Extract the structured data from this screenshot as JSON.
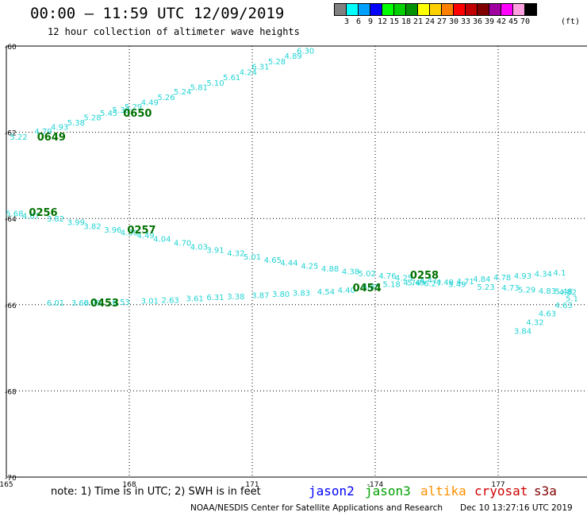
{
  "header": {
    "title": "00:00 – 11:59 UTC 12/09/2019",
    "subtitle": "12 hour collection of altimeter wave heights"
  },
  "legend": {
    "colors": [
      "#808080",
      "#00ffff",
      "#00a0ff",
      "#0000ff",
      "#00ff00",
      "#00d000",
      "#009000",
      "#ffff00",
      "#ffd000",
      "#ff8000",
      "#ff0000",
      "#c00000",
      "#800000",
      "#a000a0",
      "#ff00ff",
      "#ffa0e0",
      "#000000"
    ],
    "labels": [
      "3",
      "6",
      "9",
      "12",
      "15",
      "18",
      "21",
      "24",
      "27",
      "30",
      "33",
      "36",
      "39",
      "42",
      "45",
      "70"
    ],
    "unit": "(ft)"
  },
  "axes": {
    "lon_labels": [
      "165",
      "168",
      "171",
      "-174",
      "177"
    ],
    "lat_labels": [
      "-60",
      "-62",
      "-64",
      "-66",
      "-68",
      "-70"
    ]
  },
  "chart_data": {
    "type": "scatter",
    "xlim": [
      165,
      185
    ],
    "ylim": [
      -70,
      -60
    ],
    "series": [
      {
        "time": "0649",
        "time_pos": [
          166.1,
          -62.1
        ],
        "points": [
          [
            165.3,
            -62.1,
            "5.22"
          ],
          [
            165.9,
            -61.97,
            "4.79"
          ],
          [
            166.3,
            -61.87,
            "4.93"
          ],
          [
            166.7,
            -61.77,
            "5.38"
          ],
          [
            167.1,
            -61.65,
            "5.28"
          ],
          [
            167.5,
            -61.55,
            "5.45"
          ],
          [
            167.8,
            -61.47,
            "5.38"
          ]
        ]
      },
      {
        "time": "0650",
        "time_pos": [
          168.2,
          -61.55
        ],
        "points": [
          [
            168.1,
            -61.4,
            "5.29"
          ],
          [
            168.5,
            -61.3,
            "4.49"
          ],
          [
            168.9,
            -61.18,
            "5.26"
          ],
          [
            169.3,
            -61.05,
            "5.24"
          ],
          [
            169.7,
            -60.95,
            "5.81"
          ],
          [
            170.1,
            -60.85,
            "5.10"
          ],
          [
            170.5,
            -60.72,
            "5.61"
          ],
          [
            170.9,
            -60.6,
            "4.24"
          ],
          [
            171.2,
            -60.47,
            "6.31"
          ],
          [
            171.6,
            -60.35,
            "5.28"
          ],
          [
            172.0,
            -60.22,
            "4.89"
          ],
          [
            172.3,
            -60.1,
            "6.30"
          ]
        ]
      },
      {
        "time": "0256",
        "time_pos": [
          165.9,
          -63.85
        ],
        "points": [
          [
            165.2,
            -63.88,
            "5.68"
          ],
          [
            165.6,
            -63.93,
            "4.67"
          ],
          [
            166.2,
            -64.0,
            "3.82"
          ],
          [
            166.7,
            -64.08,
            "3.99"
          ],
          [
            167.1,
            -64.17,
            "3.82"
          ],
          [
            167.6,
            -64.25,
            "3.96"
          ],
          [
            168.0,
            -64.32,
            "4.30"
          ]
        ]
      },
      {
        "time": "0257",
        "time_pos": [
          168.3,
          -64.25
        ],
        "points": [
          [
            168.4,
            -64.38,
            "4.49"
          ],
          [
            168.8,
            -64.47,
            "4.04"
          ],
          [
            169.3,
            -64.56,
            "4.70"
          ],
          [
            169.7,
            -64.65,
            "4.03"
          ],
          [
            170.1,
            -64.72,
            "3.91"
          ],
          [
            170.6,
            -64.8,
            "4.32"
          ],
          [
            171.0,
            -64.88,
            "5.01"
          ],
          [
            171.5,
            -64.95,
            "4.65"
          ],
          [
            171.9,
            -65.02,
            "4.44"
          ],
          [
            172.4,
            -65.09,
            "4.25"
          ],
          [
            172.9,
            -65.16,
            "4.88"
          ],
          [
            173.4,
            -65.22,
            "4.38"
          ],
          [
            173.8,
            -65.27,
            "5.02"
          ],
          [
            174.3,
            -65.32,
            "4.76"
          ],
          [
            174.7,
            -65.37,
            "4.25"
          ]
        ]
      },
      {
        "time": "0258",
        "time_pos": [
          175.2,
          -65.3
        ],
        "points": [
          [
            175.3,
            -65.42,
            "4.47"
          ],
          [
            175.7,
            -65.47,
            "4.49"
          ],
          [
            176.2,
            -65.45,
            "4.71"
          ],
          [
            176.6,
            -65.4,
            "4.84"
          ],
          [
            177.1,
            -65.36,
            "4.78"
          ],
          [
            177.6,
            -65.32,
            "4.93"
          ],
          [
            178.1,
            -65.28,
            "4.34"
          ],
          [
            178.5,
            -65.25,
            "4.1"
          ],
          [
            175.0,
            -65.48,
            "5.49"
          ],
          [
            175.4,
            -65.5,
            "6.27"
          ],
          [
            176.0,
            -65.52,
            "5.49"
          ],
          [
            176.7,
            -65.58,
            "5.23"
          ],
          [
            177.3,
            -65.6,
            "4.73"
          ],
          [
            177.7,
            -65.64,
            "5.29"
          ],
          [
            178.2,
            -65.67,
            "4.83"
          ],
          [
            178.6,
            -65.68,
            "5.48"
          ]
        ]
      },
      {
        "time": "0453",
        "time_pos": [
          167.4,
          -65.95
        ],
        "points": [
          [
            166.2,
            -65.95,
            "6.01"
          ],
          [
            166.8,
            -65.95,
            "3.60"
          ],
          [
            167.1,
            -65.95,
            "6.29"
          ],
          [
            167.8,
            -65.93,
            "6.53"
          ]
        ]
      },
      {
        "time": "0454",
        "time_pos": [
          173.8,
          -65.6
        ],
        "points": [
          [
            168.5,
            -65.9,
            "3.01"
          ],
          [
            169.0,
            -65.88,
            "2.63"
          ],
          [
            169.6,
            -65.85,
            "3.61"
          ],
          [
            170.1,
            -65.82,
            "6.31"
          ],
          [
            170.6,
            -65.8,
            "3.38"
          ],
          [
            171.2,
            -65.77,
            "3.87"
          ],
          [
            171.7,
            -65.75,
            "3.80"
          ],
          [
            172.2,
            -65.72,
            "3.83"
          ],
          [
            172.8,
            -65.69,
            "4.54"
          ],
          [
            173.3,
            -65.65,
            "4.40"
          ],
          [
            173.9,
            -65.57,
            "4.88"
          ],
          [
            174.4,
            -65.52,
            "5.18"
          ],
          [
            174.9,
            -65.48,
            "4.76"
          ]
        ]
      },
      {
        "time": "",
        "time_pos": null,
        "points": [
          [
            178.7,
            -65.7,
            "4.82"
          ],
          [
            178.8,
            -65.85,
            "5.1"
          ],
          [
            178.6,
            -66.0,
            "4.63"
          ],
          [
            178.2,
            -66.2,
            "4.63"
          ],
          [
            177.9,
            -66.4,
            "4.32"
          ],
          [
            177.6,
            -66.6,
            "3.84"
          ]
        ]
      }
    ]
  },
  "footer": {
    "note": "note: 1) Time is in UTC; 2) SWH is in feet",
    "satellites": [
      {
        "name": "jason2",
        "color": "#0000ff",
        "left": 389
      },
      {
        "name": "jason3",
        "color": "#00a000",
        "left": 460
      },
      {
        "name": "altika",
        "color": "#ff9000",
        "left": 530
      },
      {
        "name": "cryosat",
        "color": "#d00000",
        "left": 598
      },
      {
        "name": "s3a",
        "color": "#800000",
        "left": 673
      }
    ],
    "credit": "NOAA/NESDIS Center for Satellite Applications and Research",
    "timestamp": "Dec 10 13:27:16 UTC 2019"
  }
}
